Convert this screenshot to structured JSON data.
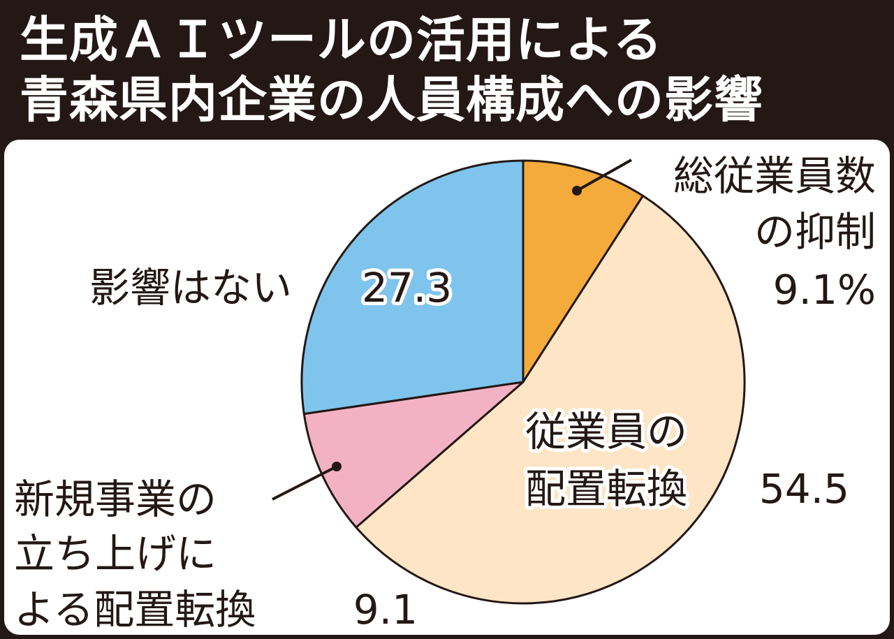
{
  "title": {
    "line1": "生成ＡＩツールの活用による",
    "line2": "青森県内企業の人員構成への影響"
  },
  "chart_data": {
    "type": "pie",
    "unit": "%",
    "slices": [
      {
        "label_lines": [
          "総従業員数",
          "の抑制"
        ],
        "value": 9.1,
        "value_text": "9.1%",
        "color": "#f4ab3c"
      },
      {
        "label_lines": [
          "従業員の",
          "配置転換"
        ],
        "value": 54.5,
        "value_text": "54.5",
        "color": "#fde5c5"
      },
      {
        "label_lines": [
          "新規事業の",
          "立ち上げに",
          "よる配置転換"
        ],
        "value": 9.1,
        "value_text": "9.1",
        "color": "#f3b2c3"
      },
      {
        "label_lines": [
          "影響はない"
        ],
        "value": 27.3,
        "value_text": "27.3",
        "color": "#7fc4ec"
      }
    ]
  }
}
